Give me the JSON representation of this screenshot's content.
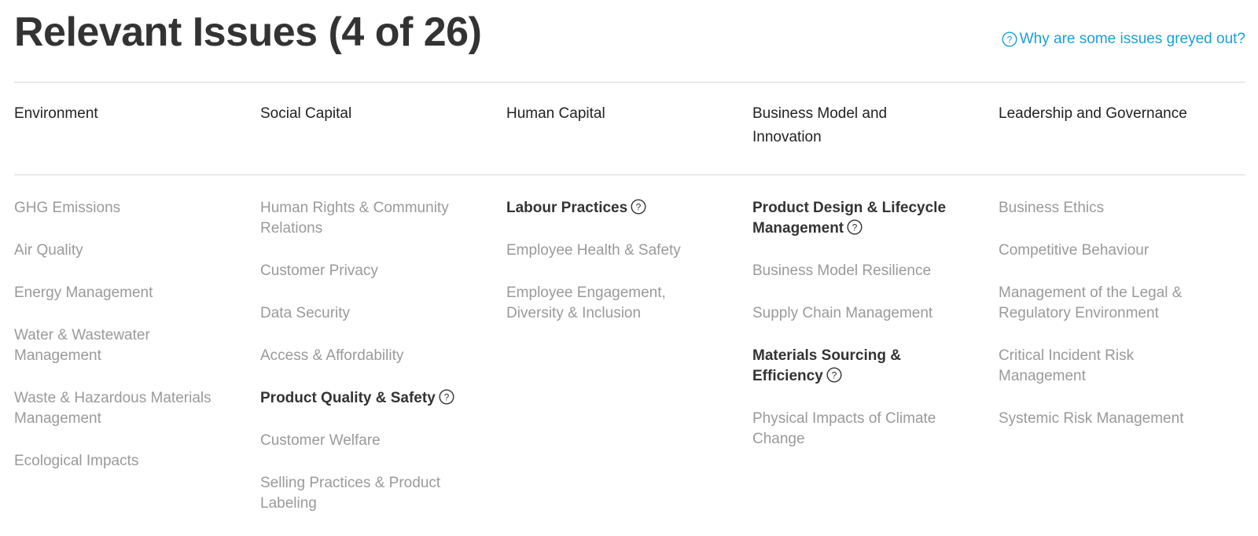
{
  "header": {
    "title": "Relevant Issues (4 of 26)",
    "help_link": "Why are some issues greyed out?"
  },
  "colors": {
    "title": "#333333",
    "link": "#1aa0d8",
    "active_issue": "#333333",
    "inactive_issue": "#9a9a9a",
    "divider": "#d7d7d7"
  },
  "categories": [
    {
      "name": "Environment",
      "issues": [
        {
          "label": "GHG Emissions",
          "active": false
        },
        {
          "label": "Air Quality",
          "active": false
        },
        {
          "label": "Energy Management",
          "active": false
        },
        {
          "label": "Water & Wastewater Management",
          "active": false
        },
        {
          "label": "Waste & Hazardous Materials Management",
          "active": false
        },
        {
          "label": "Ecological Impacts",
          "active": false
        }
      ]
    },
    {
      "name": "Social Capital",
      "issues": [
        {
          "label": "Human Rights & Community Relations",
          "active": false
        },
        {
          "label": "Customer Privacy",
          "active": false
        },
        {
          "label": "Data Security",
          "active": false
        },
        {
          "label": "Access & Affordability",
          "active": false
        },
        {
          "label": "Product Quality & Safety",
          "active": true
        },
        {
          "label": "Customer Welfare",
          "active": false
        },
        {
          "label": "Selling Practices & Product Labeling",
          "active": false
        }
      ]
    },
    {
      "name": "Human Capital",
      "issues": [
        {
          "label": "Labour Practices",
          "active": true
        },
        {
          "label": "Employee Health & Safety",
          "active": false
        },
        {
          "label": "Employee Engagement, Diversity & Inclusion",
          "active": false
        }
      ]
    },
    {
      "name": "Business Model and Innovation",
      "issues": [
        {
          "label": "Product Design & Lifecycle Management",
          "active": true
        },
        {
          "label": "Business Model Resilience",
          "active": false
        },
        {
          "label": "Supply Chain Management",
          "active": false
        },
        {
          "label": "Materials Sourcing & Efficiency",
          "active": true
        },
        {
          "label": "Physical Impacts of Climate Change",
          "active": false
        }
      ]
    },
    {
      "name": "Leadership and Governance",
      "issues": [
        {
          "label": "Business Ethics",
          "active": false
        },
        {
          "label": "Competitive Behaviour",
          "active": false
        },
        {
          "label": "Management of the Legal & Regulatory Environment",
          "active": false
        },
        {
          "label": "Critical Incident Risk Management",
          "active": false
        },
        {
          "label": "Systemic Risk Management",
          "active": false
        }
      ]
    }
  ]
}
